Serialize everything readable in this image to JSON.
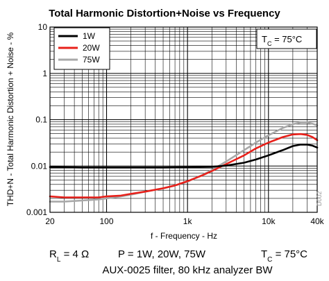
{
  "chart_data": {
    "type": "line",
    "title": "Total Harmonic Distortion+Noise vs Frequency",
    "xlabel": "f - Frequency - Hz",
    "ylabel": "THD+N - Total Harmonic Distortion + Noise - %",
    "x_scale": "log",
    "y_scale": "log",
    "xlim": [
      20,
      40000
    ],
    "ylim": [
      0.001,
      10
    ],
    "x_ticks": [
      {
        "value": 20,
        "label": "20"
      },
      {
        "value": 100,
        "label": "100"
      },
      {
        "value": 1000,
        "label": "1k"
      },
      {
        "value": 10000,
        "label": "10k"
      },
      {
        "value": 40000,
        "label": "40k"
      }
    ],
    "y_ticks": [
      {
        "value": 0.001,
        "label": "0.001"
      },
      {
        "value": 0.01,
        "label": "0.01"
      },
      {
        "value": 0.1,
        "label": "0.1"
      },
      {
        "value": 1,
        "label": "1"
      },
      {
        "value": 10,
        "label": "10"
      }
    ],
    "grid": true,
    "legend_position": "top-left",
    "annotation": {
      "main": "T",
      "sub": "C",
      "rest": " = 75°C"
    },
    "figure_code": "D002",
    "series": [
      {
        "name": "1W",
        "color": "#000000",
        "points": [
          [
            20,
            0.0095
          ],
          [
            30,
            0.0094
          ],
          [
            50,
            0.0093
          ],
          [
            100,
            0.0093
          ],
          [
            200,
            0.0093
          ],
          [
            500,
            0.0093
          ],
          [
            1000,
            0.0094
          ],
          [
            2000,
            0.0096
          ],
          [
            3000,
            0.0102
          ],
          [
            5000,
            0.0118
          ],
          [
            7000,
            0.0138
          ],
          [
            10000,
            0.017
          ],
          [
            15000,
            0.022
          ],
          [
            20000,
            0.027
          ],
          [
            25000,
            0.029
          ],
          [
            30000,
            0.029
          ],
          [
            35000,
            0.0275
          ],
          [
            40000,
            0.025
          ]
        ]
      },
      {
        "name": "20W",
        "color": "#e8201a",
        "points": [
          [
            20,
            0.0022
          ],
          [
            30,
            0.0021
          ],
          [
            50,
            0.0021
          ],
          [
            80,
            0.0021
          ],
          [
            100,
            0.0022
          ],
          [
            150,
            0.0023
          ],
          [
            200,
            0.0025
          ],
          [
            300,
            0.0028
          ],
          [
            500,
            0.0033
          ],
          [
            700,
            0.0038
          ],
          [
            1000,
            0.0047
          ],
          [
            1500,
            0.0062
          ],
          [
            2000,
            0.0078
          ],
          [
            3000,
            0.011
          ],
          [
            5000,
            0.017
          ],
          [
            7000,
            0.024
          ],
          [
            10000,
            0.032
          ],
          [
            15000,
            0.042
          ],
          [
            20000,
            0.048
          ],
          [
            25000,
            0.049
          ],
          [
            30000,
            0.047
          ],
          [
            35000,
            0.042
          ],
          [
            40000,
            0.036
          ]
        ]
      },
      {
        "name": "75W",
        "color": "#a8a8a8",
        "points": [
          [
            20,
            0.0017
          ],
          [
            30,
            0.0017
          ],
          [
            50,
            0.0018
          ],
          [
            80,
            0.0019
          ],
          [
            100,
            0.002
          ],
          [
            150,
            0.0022
          ],
          [
            200,
            0.0024
          ],
          [
            300,
            0.0028
          ],
          [
            500,
            0.0033
          ],
          [
            700,
            0.0038
          ],
          [
            1000,
            0.0046
          ],
          [
            1500,
            0.0063
          ],
          [
            2000,
            0.0082
          ],
          [
            3000,
            0.0125
          ],
          [
            5000,
            0.022
          ],
          [
            7000,
            0.032
          ],
          [
            10000,
            0.046
          ],
          [
            15000,
            0.066
          ],
          [
            20000,
            0.08
          ],
          [
            25000,
            0.087
          ],
          [
            30000,
            0.087
          ],
          [
            35000,
            0.082
          ],
          [
            40000,
            0.075
          ]
        ]
      }
    ]
  },
  "footer": {
    "rl_main": "R",
    "rl_sub": "L",
    "rl_rest": " = 4 Ω",
    "power": "P = 1W, 20W, 75W",
    "tc_main": "T",
    "tc_sub": "C",
    "tc_rest": " = 75°C",
    "filter_note": "AUX-0025 filter, 80 kHz analyzer BW"
  }
}
